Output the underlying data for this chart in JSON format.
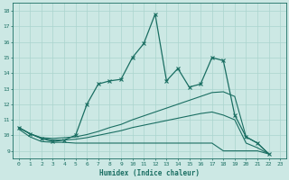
{
  "xlabel": "Humidex (Indice chaleur)",
  "bg_color": "#cce8e4",
  "grid_color": "#aad4ce",
  "line_color": "#1a6e62",
  "xlim": [
    -0.5,
    23.5
  ],
  "ylim": [
    8.5,
    18.5
  ],
  "xticks": [
    0,
    1,
    2,
    3,
    4,
    5,
    6,
    7,
    8,
    9,
    10,
    11,
    12,
    13,
    14,
    15,
    16,
    17,
    18,
    19,
    20,
    21,
    22,
    23
  ],
  "yticks": [
    9,
    10,
    11,
    12,
    13,
    14,
    15,
    16,
    17,
    18
  ],
  "s1_x": [
    0,
    1,
    2,
    3,
    4,
    5,
    6,
    7,
    8,
    9,
    10,
    11,
    12,
    13,
    14,
    15,
    16,
    17,
    18,
    19,
    20,
    21,
    22
  ],
  "s1_y": [
    10.5,
    10.1,
    9.8,
    9.6,
    9.7,
    10.0,
    12.0,
    13.3,
    13.5,
    13.6,
    15.0,
    15.9,
    17.8,
    13.5,
    14.3,
    13.1,
    13.3,
    15.0,
    14.8,
    11.3,
    9.9,
    9.5,
    8.8
  ],
  "s2_x": [
    0,
    1,
    2,
    3,
    4,
    5,
    6,
    7,
    8,
    9,
    10,
    11,
    12,
    13,
    14,
    15,
    16,
    17,
    18,
    19,
    20,
    21,
    22
  ],
  "s2_y": [
    10.5,
    10.1,
    9.85,
    9.8,
    9.85,
    9.9,
    10.05,
    10.25,
    10.5,
    10.7,
    11.0,
    11.25,
    11.5,
    11.75,
    12.0,
    12.25,
    12.5,
    12.75,
    12.8,
    12.5,
    9.9,
    9.5,
    8.8
  ],
  "s3_x": [
    0,
    1,
    2,
    3,
    4,
    5,
    6,
    7,
    8,
    9,
    10,
    11,
    12,
    13,
    14,
    15,
    16,
    17,
    18,
    19,
    20,
    21,
    22
  ],
  "s3_y": [
    10.5,
    10.1,
    9.8,
    9.7,
    9.7,
    9.75,
    9.85,
    10.0,
    10.15,
    10.3,
    10.5,
    10.65,
    10.8,
    10.95,
    11.1,
    11.25,
    11.4,
    11.5,
    11.3,
    11.0,
    9.5,
    9.2,
    8.8
  ],
  "s4_x": [
    0,
    1,
    2,
    3,
    4,
    5,
    6,
    7,
    8,
    9,
    10,
    11,
    12,
    13,
    14,
    15,
    16,
    17,
    18,
    19,
    20,
    21,
    22
  ],
  "s4_y": [
    10.4,
    9.9,
    9.6,
    9.55,
    9.55,
    9.5,
    9.5,
    9.5,
    9.5,
    9.5,
    9.5,
    9.5,
    9.5,
    9.5,
    9.5,
    9.5,
    9.5,
    9.5,
    9.0,
    9.0,
    9.0,
    9.0,
    8.8
  ]
}
